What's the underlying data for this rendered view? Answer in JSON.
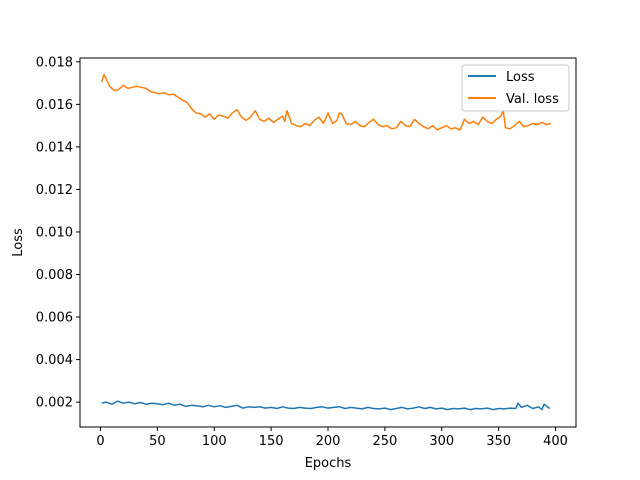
{
  "chart_data": {
    "type": "line",
    "xlabel": "Epochs",
    "ylabel": "Loss",
    "xlim": [
      -18,
      418
    ],
    "ylim": [
      0.00083,
      0.01818
    ],
    "xticks": [
      0,
      50,
      100,
      150,
      200,
      250,
      300,
      350,
      400
    ],
    "xtick_labels": [
      "0",
      "50",
      "100",
      "150",
      "200",
      "250",
      "300",
      "350",
      "400"
    ],
    "yticks": [
      0.002,
      0.004,
      0.006,
      0.008,
      0.01,
      0.012,
      0.014,
      0.016,
      0.018
    ],
    "ytick_labels": [
      "0.002",
      "0.004",
      "0.006",
      "0.008",
      "0.010",
      "0.012",
      "0.014",
      "0.016",
      "0.018"
    ],
    "grid": false,
    "legend_position": "top-right",
    "series": [
      {
        "name": "Loss",
        "color": "#1f77b4",
        "x": [
          1,
          5,
          10,
          15,
          20,
          25,
          30,
          35,
          40,
          45,
          50,
          55,
          60,
          65,
          70,
          75,
          80,
          85,
          90,
          95,
          100,
          105,
          110,
          115,
          120,
          125,
          130,
          135,
          140,
          145,
          150,
          155,
          160,
          165,
          170,
          175,
          180,
          185,
          190,
          195,
          200,
          205,
          210,
          215,
          220,
          225,
          230,
          235,
          240,
          245,
          250,
          255,
          260,
          265,
          270,
          275,
          280,
          285,
          290,
          295,
          300,
          305,
          310,
          315,
          320,
          325,
          330,
          335,
          340,
          345,
          350,
          355,
          360,
          365,
          367,
          370,
          375,
          380,
          385,
          388,
          390,
          395
        ],
        "y": [
          0.00195,
          0.002,
          0.0019,
          0.00205,
          0.00195,
          0.002,
          0.00192,
          0.00198,
          0.0019,
          0.00195,
          0.00192,
          0.00188,
          0.00195,
          0.00185,
          0.0019,
          0.0018,
          0.00185,
          0.00182,
          0.00178,
          0.00185,
          0.00178,
          0.00183,
          0.00175,
          0.0018,
          0.00185,
          0.00172,
          0.00178,
          0.00175,
          0.00178,
          0.00172,
          0.00175,
          0.0017,
          0.00178,
          0.00172,
          0.0017,
          0.00175,
          0.00172,
          0.0017,
          0.00175,
          0.00178,
          0.00172,
          0.00175,
          0.00178,
          0.0017,
          0.00175,
          0.00172,
          0.00168,
          0.00175,
          0.0017,
          0.00168,
          0.00172,
          0.00165,
          0.0017,
          0.00175,
          0.00168,
          0.00172,
          0.00178,
          0.0017,
          0.00175,
          0.00168,
          0.00172,
          0.00165,
          0.0017,
          0.00168,
          0.00172,
          0.00165,
          0.0017,
          0.00168,
          0.00172,
          0.00165,
          0.0017,
          0.00168,
          0.00172,
          0.0017,
          0.00195,
          0.00175,
          0.00185,
          0.0017,
          0.00178,
          0.00165,
          0.0019,
          0.0017
        ]
      },
      {
        "name": "Val. loss",
        "color": "#ff7f0e",
        "x": [
          1,
          3,
          5,
          8,
          12,
          16,
          20,
          24,
          28,
          32,
          36,
          40,
          44,
          48,
          52,
          56,
          60,
          64,
          68,
          72,
          76,
          80,
          84,
          88,
          92,
          96,
          100,
          104,
          108,
          112,
          116,
          120,
          124,
          128,
          132,
          136,
          140,
          144,
          148,
          152,
          156,
          160,
          162,
          164,
          168,
          172,
          176,
          180,
          184,
          188,
          192,
          196,
          200,
          204,
          208,
          210,
          212,
          216,
          220,
          224,
          228,
          232,
          236,
          240,
          244,
          248,
          252,
          256,
          260,
          264,
          268,
          272,
          276,
          280,
          284,
          288,
          292,
          296,
          300,
          304,
          308,
          312,
          316,
          320,
          324,
          328,
          332,
          336,
          340,
          344,
          348,
          352,
          354,
          356,
          360,
          364,
          368,
          372,
          376,
          380,
          384,
          388,
          392,
          396
        ],
        "y": [
          0.01705,
          0.0174,
          0.0172,
          0.01685,
          0.01665,
          0.0167,
          0.0169,
          0.01675,
          0.0168,
          0.01685,
          0.0168,
          0.01675,
          0.0166,
          0.01655,
          0.0165,
          0.01655,
          0.01645,
          0.01648,
          0.01635,
          0.0162,
          0.0161,
          0.0158,
          0.0156,
          0.01555,
          0.0154,
          0.01555,
          0.0153,
          0.0155,
          0.01545,
          0.01535,
          0.0156,
          0.01575,
          0.0154,
          0.01525,
          0.0154,
          0.0157,
          0.0153,
          0.0152,
          0.01535,
          0.01515,
          0.0153,
          0.01545,
          0.0152,
          0.0157,
          0.0151,
          0.015,
          0.01495,
          0.0151,
          0.015,
          0.01525,
          0.0154,
          0.0151,
          0.0156,
          0.0151,
          0.01525,
          0.0156,
          0.01555,
          0.0151,
          0.01505,
          0.0152,
          0.015,
          0.01495,
          0.01515,
          0.0153,
          0.01505,
          0.01495,
          0.015,
          0.01485,
          0.0149,
          0.0152,
          0.015,
          0.01495,
          0.0153,
          0.0151,
          0.01495,
          0.01485,
          0.015,
          0.0148,
          0.0149,
          0.015,
          0.01485,
          0.0149,
          0.0148,
          0.0153,
          0.0151,
          0.0152,
          0.01505,
          0.0154,
          0.0152,
          0.0151,
          0.0153,
          0.01545,
          0.0157,
          0.0149,
          0.01485,
          0.015,
          0.0152,
          0.01495,
          0.015,
          0.0151,
          0.01505,
          0.01515,
          0.01505,
          0.0151
        ]
      }
    ]
  }
}
